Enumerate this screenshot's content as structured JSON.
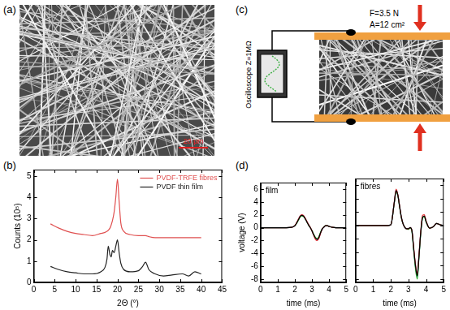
{
  "panels": {
    "a": {
      "label": "(a)",
      "scale_bar": "20 µm"
    },
    "b": {
      "label": "(b)"
    },
    "c": {
      "label": "(c)",
      "oscilloscope": "Oscilloscope Z=1MΩ",
      "force": "F=3.5 N",
      "area": "A=12 cm²"
    },
    "d": {
      "label": "(d)"
    }
  },
  "chart_data": [
    {
      "type": "line",
      "x_label": "2Θ (°)",
      "y_label": "Counts (10⁵)",
      "xlim": [
        0,
        45
      ],
      "xticks": [
        0,
        5,
        10,
        15,
        20,
        25,
        30,
        35,
        40,
        45
      ],
      "ylim": [
        0,
        5.3
      ],
      "yticks": [
        0,
        1,
        2,
        3,
        4,
        5
      ],
      "grid": false,
      "legend": "upper right",
      "x": [
        4,
        6,
        8,
        10,
        12,
        14,
        16,
        17,
        17.5,
        17.8,
        18.2,
        18.5,
        18.8,
        19.2,
        19.6,
        20,
        20.4,
        20.8,
        21.5,
        23,
        25,
        26,
        26.7,
        27.5,
        29,
        31,
        33,
        35.5,
        37,
        38.5,
        40
      ],
      "series": [
        {
          "name": "PVDF-TRFE fibres",
          "color": "#e05050",
          "values": [
            2.75,
            2.55,
            2.4,
            2.3,
            2.25,
            2.2,
            2.3,
            2.35,
            2.4,
            2.45,
            2.55,
            2.7,
            2.9,
            3.3,
            4.0,
            4.85,
            3.8,
            2.8,
            2.4,
            2.25,
            2.2,
            2.2,
            2.2,
            2.15,
            2.1,
            2.1,
            2.1,
            2.1,
            2.1,
            2.1,
            2.1
          ]
        },
        {
          "name": "PVDF thin film",
          "color": "#222222",
          "values": [
            0.75,
            0.6,
            0.5,
            0.45,
            0.4,
            0.4,
            0.5,
            0.7,
            1.1,
            1.7,
            1.3,
            1.2,
            1.5,
            1.4,
            1.7,
            2.0,
            1.4,
            0.9,
            0.6,
            0.5,
            0.55,
            0.75,
            0.95,
            0.6,
            0.4,
            0.3,
            0.35,
            0.4,
            0.3,
            0.5,
            0.4
          ]
        }
      ]
    },
    {
      "type": "line",
      "title": "film",
      "x_label": "time (ms)",
      "y_label": "voltage (V)",
      "xlim": [
        0,
        5
      ],
      "xticks": [
        0,
        1,
        2,
        3,
        4,
        5
      ],
      "ylim": [
        -8.5,
        7
      ],
      "yticks": [
        -8,
        -6,
        -4,
        -2,
        0,
        2,
        4,
        6
      ],
      "grid": false,
      "x": [
        0,
        0.5,
        1,
        1.5,
        1.8,
        2,
        2.2,
        2.3,
        2.4,
        2.5,
        2.6,
        2.7,
        2.8,
        2.9,
        3,
        3.1,
        3.2,
        3.3,
        3.4,
        3.5,
        3.6,
        3.7,
        3.8,
        3.9,
        4,
        4.2,
        4.4,
        4.6,
        4.8,
        5
      ],
      "series": [
        {
          "color": "#000000",
          "values": [
            0,
            0,
            0,
            0,
            0.05,
            0.3,
            1.2,
            1.7,
            1.9,
            1.8,
            1.4,
            0.9,
            0.4,
            0,
            -0.5,
            -1.1,
            -1.6,
            -1.8,
            -1.5,
            -0.8,
            -0.2,
            0.1,
            0.3,
            0.3,
            0.2,
            0.05,
            0,
            0,
            0,
            0
          ]
        },
        {
          "color": "#e03030",
          "values": [
            0,
            0,
            0,
            0,
            0.05,
            0.35,
            1.3,
            1.8,
            2.0,
            1.9,
            1.5,
            1.0,
            0.5,
            0.05,
            -0.5,
            -1.2,
            -1.8,
            -2.0,
            -1.7,
            -0.9,
            -0.2,
            0.1,
            0.3,
            0.3,
            0.2,
            0.05,
            0,
            0,
            0,
            0
          ]
        },
        {
          "color": "#30b030",
          "values": [
            0,
            0,
            0,
            0,
            0.05,
            0.3,
            1.1,
            1.6,
            1.8,
            1.75,
            1.4,
            0.9,
            0.4,
            0,
            -0.45,
            -1.0,
            -1.5,
            -1.7,
            -1.4,
            -0.7,
            -0.15,
            0.15,
            0.3,
            0.3,
            0.2,
            0.05,
            0,
            0,
            0,
            0
          ]
        },
        {
          "color": "#3050e0",
          "values": [
            0,
            0,
            0,
            0,
            0.05,
            0.3,
            1.2,
            1.75,
            1.95,
            1.85,
            1.45,
            0.95,
            0.45,
            0,
            -0.5,
            -1.1,
            -1.6,
            -1.9,
            -1.6,
            -0.8,
            -0.2,
            0.1,
            0.3,
            0.3,
            0.2,
            0.05,
            0,
            0,
            0,
            0
          ]
        }
      ]
    },
    {
      "type": "line",
      "title": "fibres",
      "x_label": "time (ms)",
      "xlim": [
        0,
        5
      ],
      "xticks": [
        0,
        1,
        2,
        3,
        4,
        5
      ],
      "ylim": [
        -8.5,
        7
      ],
      "yticks": [
        -8,
        -6,
        -4,
        -2,
        0,
        2,
        4,
        6
      ],
      "grid": false,
      "tick_labels": "x",
      "x": [
        0,
        0.5,
        1,
        1.5,
        1.8,
        2,
        2.2,
        2.3,
        2.4,
        2.5,
        2.6,
        2.7,
        2.8,
        2.9,
        3,
        3.1,
        3.2,
        3.3,
        3.4,
        3.5,
        3.6,
        3.7,
        3.8,
        3.9,
        4,
        4.2,
        4.4,
        4.6,
        4.8,
        5
      ],
      "series": [
        {
          "color": "#000000",
          "values": [
            0,
            0,
            0,
            0,
            0,
            0.1,
            3.5,
            5.2,
            4.5,
            2.8,
            1.2,
            0.2,
            -0.3,
            -0.5,
            -0.5,
            -0.3,
            -0.8,
            -3.5,
            -6.0,
            -7.5,
            -4.5,
            -1.0,
            1.2,
            1.4,
            0.6,
            -0.4,
            -0.2,
            0.3,
            0.1,
            0
          ]
        },
        {
          "color": "#e03030",
          "values": [
            0,
            0,
            0,
            0,
            0,
            0.1,
            3.6,
            5.4,
            4.6,
            2.9,
            1.2,
            0.2,
            -0.3,
            -0.5,
            -0.5,
            -0.3,
            -0.8,
            -3.3,
            -5.8,
            -7.2,
            -4.3,
            -0.8,
            1.5,
            1.6,
            0.7,
            -0.4,
            -0.2,
            0.3,
            0.1,
            0
          ]
        },
        {
          "color": "#30b030",
          "values": [
            0,
            0,
            0,
            0,
            0,
            0.1,
            3.4,
            5.1,
            4.4,
            2.7,
            1.1,
            0.2,
            -0.3,
            -0.5,
            -0.6,
            -0.4,
            -1.0,
            -3.8,
            -6.5,
            -8.0,
            -4.8,
            -1.2,
            1.1,
            1.3,
            0.5,
            -0.4,
            -0.2,
            0.3,
            0.1,
            0
          ]
        },
        {
          "color": "#3050e0",
          "values": [
            0,
            0,
            0,
            0,
            0,
            0.1,
            3.5,
            5.3,
            4.5,
            2.8,
            1.2,
            0.2,
            -0.3,
            -0.5,
            -0.5,
            -0.35,
            -0.9,
            -3.6,
            -6.2,
            -7.7,
            -4.6,
            -1.0,
            1.2,
            1.4,
            0.6,
            -0.4,
            -0.2,
            0.3,
            0.1,
            0
          ]
        }
      ]
    }
  ]
}
